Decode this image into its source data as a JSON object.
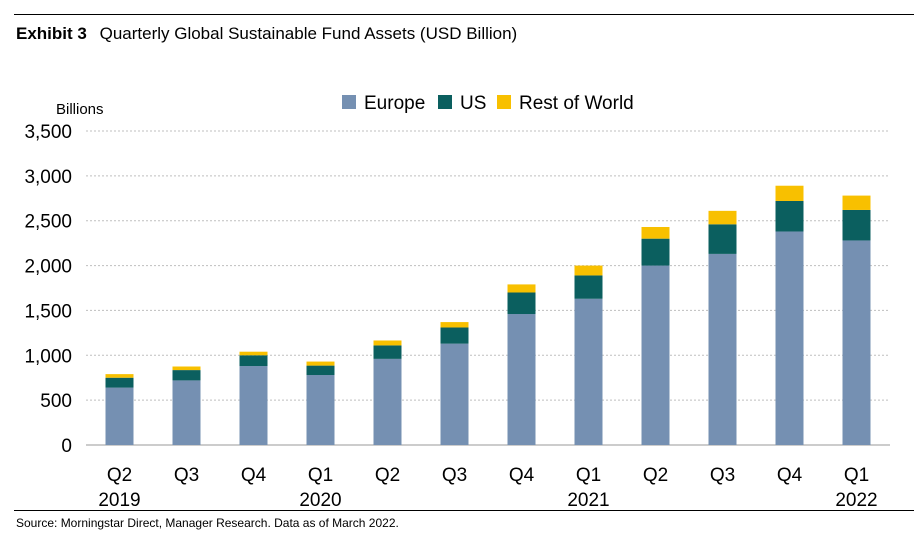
{
  "header": {
    "exhibit": "Exhibit 3",
    "title": "Quarterly Global Sustainable Fund Assets (USD Billion)"
  },
  "footer": {
    "source": "Source: Morningstar Direct, Manager Research. Data as of March 2022."
  },
  "chart_data": {
    "type": "bar",
    "stacked": true,
    "title": "Quarterly Global Sustainable Fund Assets (USD Billion)",
    "ylabel": "Billions",
    "ylim": [
      0,
      3500
    ],
    "yticks": [
      0,
      500,
      1000,
      1500,
      2000,
      2500,
      3000,
      3500
    ],
    "ytick_labels": [
      "0",
      "500",
      "1,000",
      "1,500",
      "2,000",
      "2,500",
      "3,000",
      "3,500"
    ],
    "grid": true,
    "legend_position": "top-center",
    "categories": [
      "Q2 2019",
      "Q3 2019",
      "Q4 2019",
      "Q1 2020",
      "Q2 2020",
      "Q3 2020",
      "Q4 2020",
      "Q1 2021",
      "Q2 2021",
      "Q3 2021",
      "Q4 2021",
      "Q1 2022"
    ],
    "quarter_labels": [
      "Q2",
      "Q3",
      "Q4",
      "Q1",
      "Q2",
      "Q3",
      "Q4",
      "Q1",
      "Q2",
      "Q3",
      "Q4",
      "Q1"
    ],
    "year_labels": [
      "2019",
      "",
      "",
      "2020",
      "",
      "",
      "",
      "2021",
      "",
      "",
      "",
      "2022"
    ],
    "series": [
      {
        "name": "Europe",
        "color": "#7590B2",
        "values": [
          640,
          720,
          880,
          780,
          960,
          1130,
          1460,
          1630,
          2000,
          2130,
          2380,
          2280
        ]
      },
      {
        "name": "US",
        "color": "#0B5F5F",
        "values": [
          110,
          115,
          120,
          105,
          150,
          180,
          240,
          260,
          300,
          330,
          340,
          340
        ]
      },
      {
        "name": "Rest of World",
        "color": "#F8C000",
        "values": [
          40,
          40,
          40,
          45,
          55,
          60,
          90,
          110,
          130,
          150,
          170,
          160
        ]
      }
    ]
  }
}
